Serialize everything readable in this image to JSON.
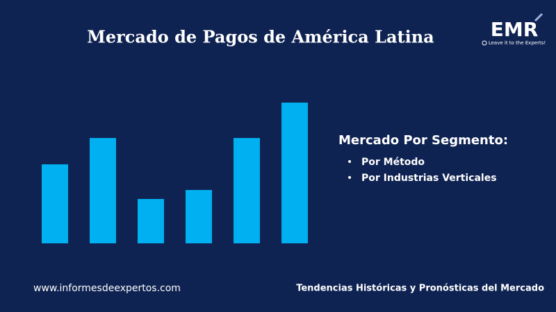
{
  "chart_data": {
    "type": "bar",
    "title": "Mercado de Pagos de América Latina",
    "categories": [
      null,
      null,
      null,
      null,
      null,
      null
    ],
    "values": [
      114,
      152,
      64,
      77,
      152,
      203
    ],
    "color": "#00b0f0",
    "ylim": [
      0,
      210
    ]
  },
  "logo": {
    "name": "EMR",
    "tagline": "Leave it to the Experts!"
  },
  "segments": {
    "heading": "Mercado Por Segmento:",
    "items": [
      "Por Método",
      "Por Industrias Verticales"
    ]
  },
  "footer": {
    "website": "www.informesdeexpertos.com",
    "caption": "Tendencias Históricas y Pronósticas del Mercado"
  }
}
